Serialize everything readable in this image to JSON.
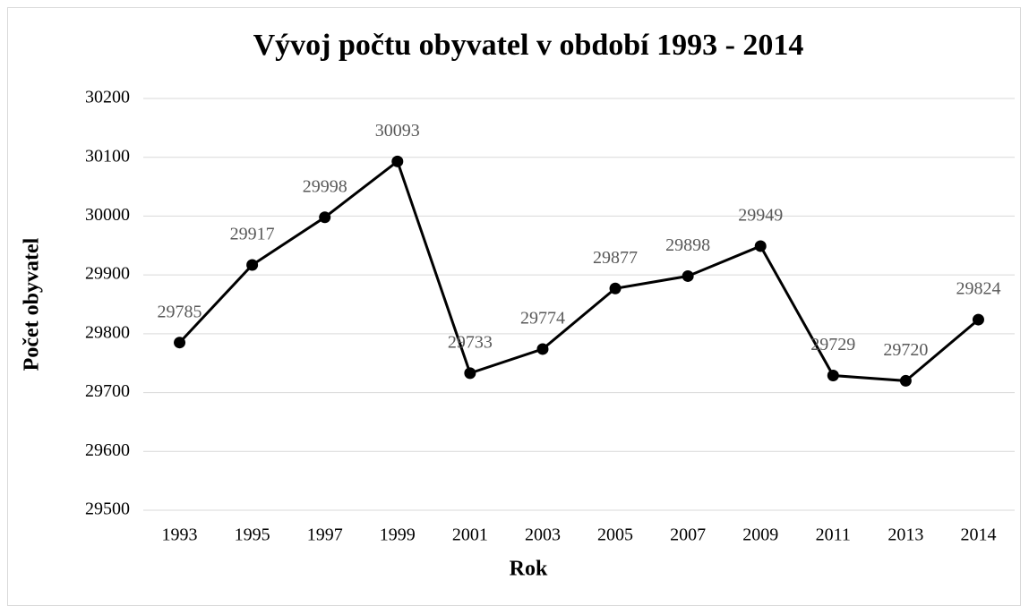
{
  "chart_data": {
    "type": "line",
    "title": "Vývoj počtu obyvatel v období 1993 - 2014",
    "x_label": "Rok",
    "y_label": "Počet obyvatel",
    "categories": [
      "1993",
      "1995",
      "1997",
      "1999",
      "2001",
      "2003",
      "2005",
      "2007",
      "2009",
      "2011",
      "2013",
      "2014"
    ],
    "values": [
      29785,
      29917,
      29998,
      30093,
      29733,
      29774,
      29877,
      29898,
      29949,
      29729,
      29720,
      29824
    ],
    "color": "#000000",
    "ylim": [
      29500,
      30200
    ],
    "yticks": [
      29500,
      29600,
      29700,
      29800,
      29900,
      30000,
      30100,
      30200
    ],
    "grid": true,
    "data_labels": true
  }
}
